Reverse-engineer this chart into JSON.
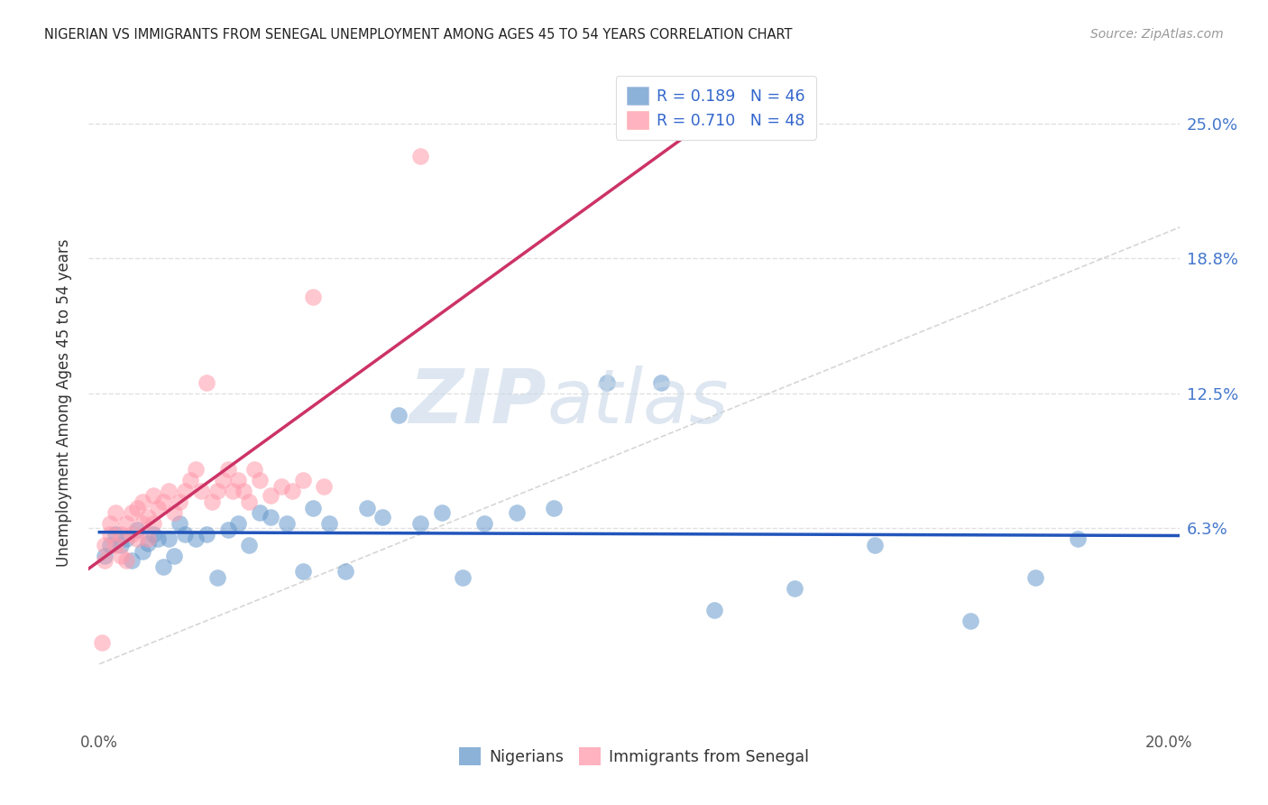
{
  "title": "NIGERIAN VS IMMIGRANTS FROM SENEGAL UNEMPLOYMENT AMONG AGES 45 TO 54 YEARS CORRELATION CHART",
  "source": "Source: ZipAtlas.com",
  "ylabel": "Unemployment Among Ages 45 to 54 years",
  "blue_color": "#6699CC",
  "pink_color": "#FF99AA",
  "blue_line_color": "#2255BB",
  "pink_line_color": "#CC3366",
  "watermark_color": "#C8D8E8",
  "grid_color": "#DDDDDD",
  "diag_color": "#CCCCCC",
  "nigerian_x": [
    0.001,
    0.002,
    0.003,
    0.004,
    0.005,
    0.006,
    0.007,
    0.008,
    0.009,
    0.01,
    0.011,
    0.012,
    0.013,
    0.014,
    0.015,
    0.016,
    0.018,
    0.02,
    0.022,
    0.024,
    0.026,
    0.028,
    0.03,
    0.032,
    0.035,
    0.038,
    0.04,
    0.043,
    0.046,
    0.05,
    0.053,
    0.056,
    0.06,
    0.064,
    0.068,
    0.072,
    0.078,
    0.085,
    0.095,
    0.105,
    0.115,
    0.13,
    0.145,
    0.163,
    0.175,
    0.183
  ],
  "nigerian_y": [
    0.05,
    0.055,
    0.06,
    0.055,
    0.058,
    0.048,
    0.062,
    0.052,
    0.056,
    0.06,
    0.058,
    0.045,
    0.058,
    0.05,
    0.065,
    0.06,
    0.058,
    0.06,
    0.04,
    0.062,
    0.065,
    0.055,
    0.07,
    0.068,
    0.065,
    0.043,
    0.072,
    0.065,
    0.043,
    0.072,
    0.068,
    0.115,
    0.065,
    0.07,
    0.04,
    0.065,
    0.07,
    0.072,
    0.13,
    0.13,
    0.025,
    0.035,
    0.055,
    0.02,
    0.04,
    0.058
  ],
  "senegal_x": [
    0.0005,
    0.001,
    0.001,
    0.002,
    0.002,
    0.003,
    0.003,
    0.004,
    0.004,
    0.005,
    0.005,
    0.006,
    0.006,
    0.007,
    0.007,
    0.008,
    0.008,
    0.009,
    0.009,
    0.01,
    0.01,
    0.011,
    0.012,
    0.013,
    0.014,
    0.015,
    0.016,
    0.017,
    0.018,
    0.019,
    0.02,
    0.021,
    0.022,
    0.023,
    0.024,
    0.025,
    0.026,
    0.027,
    0.028,
    0.029,
    0.03,
    0.032,
    0.034,
    0.036,
    0.038,
    0.04,
    0.042,
    0.06
  ],
  "senegal_y": [
    0.01,
    0.048,
    0.055,
    0.06,
    0.065,
    0.055,
    0.07,
    0.05,
    0.06,
    0.048,
    0.065,
    0.06,
    0.07,
    0.058,
    0.072,
    0.065,
    0.075,
    0.058,
    0.068,
    0.065,
    0.078,
    0.072,
    0.075,
    0.08,
    0.07,
    0.075,
    0.08,
    0.085,
    0.09,
    0.08,
    0.13,
    0.075,
    0.08,
    0.085,
    0.09,
    0.08,
    0.085,
    0.08,
    0.075,
    0.09,
    0.085,
    0.078,
    0.082,
    0.08,
    0.085,
    0.17,
    0.082,
    0.235
  ],
  "xlim": [
    -0.002,
    0.202
  ],
  "ylim": [
    -0.028,
    0.27
  ],
  "xticks": [
    0.0,
    0.05,
    0.1,
    0.15,
    0.2
  ],
  "xtick_labels": [
    "0.0%",
    "",
    "",
    "",
    "20.0%"
  ],
  "ytick_right": [
    0.063,
    0.125,
    0.188,
    0.25
  ],
  "ytick_right_labels": [
    "6.3%",
    "12.5%",
    "18.8%",
    "25.0%"
  ]
}
